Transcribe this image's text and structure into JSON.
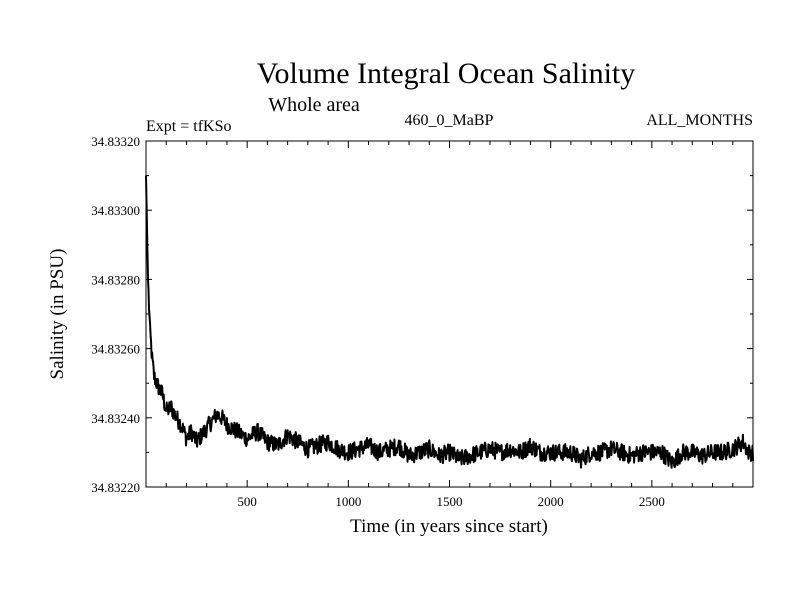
{
  "chart_data": {
    "type": "line",
    "title": "Volume Integral Ocean Salinity",
    "subtitle": "Whole area",
    "header_left": "Expt = tfKSo",
    "header_center": "460_0_MaBP",
    "header_right": "ALL_MONTHS",
    "xlabel": "Time (in years since start)",
    "ylabel": "Salinity (in PSU)",
    "xlim": [
      0,
      3000
    ],
    "ylim": [
      34.8322,
      34.8332
    ],
    "x_ticks": [
      500,
      1000,
      1500,
      2000,
      2500
    ],
    "x_tick_labels": [
      "500",
      "1000",
      "1500",
      "2000",
      "2500"
    ],
    "y_ticks": [
      34.8322,
      34.8324,
      34.8326,
      34.8328,
      34.833,
      34.8332
    ],
    "y_tick_labels": [
      "34.83220",
      "34.83240",
      "34.83260",
      "34.83280",
      "34.83300",
      "34.83320"
    ],
    "grid": false,
    "series": [
      {
        "name": "Salinity",
        "color": "#000000",
        "x": [
          0,
          5,
          10,
          20,
          30,
          40,
          60,
          80,
          100,
          125,
          150,
          175,
          200,
          225,
          250,
          275,
          300,
          325,
          350,
          375,
          400,
          450,
          500,
          550,
          600,
          650,
          700,
          750,
          800,
          850,
          900,
          950,
          1000,
          1050,
          1100,
          1150,
          1200,
          1250,
          1300,
          1350,
          1400,
          1450,
          1500,
          1550,
          1600,
          1650,
          1700,
          1750,
          1800,
          1850,
          1900,
          1950,
          2000,
          2050,
          2100,
          2150,
          2200,
          2250,
          2300,
          2350,
          2400,
          2450,
          2500,
          2550,
          2600,
          2650,
          2700,
          2750,
          2800,
          2850,
          2900,
          2950,
          2980,
          3000
        ],
        "values": [
          34.8331,
          34.83295,
          34.8328,
          34.83265,
          34.83257,
          34.83252,
          34.83249,
          34.83247,
          34.83242,
          34.83243,
          34.8324,
          34.83238,
          34.83234,
          34.83236,
          34.83233,
          34.83235,
          34.83237,
          34.83239,
          34.83241,
          34.8324,
          34.83238,
          34.83236,
          34.83234,
          34.83236,
          34.83233,
          34.83232,
          34.83235,
          34.83233,
          34.83231,
          34.83232,
          34.83233,
          34.83231,
          34.8323,
          34.83231,
          34.83232,
          34.8323,
          34.83231,
          34.83232,
          34.83229,
          34.8323,
          34.83231,
          34.83229,
          34.8323,
          34.83228,
          34.83229,
          34.8323,
          34.83231,
          34.8323,
          34.83231,
          34.8323,
          34.83232,
          34.8323,
          34.8323,
          34.8323,
          34.8323,
          34.83228,
          34.8323,
          34.8323,
          34.83231,
          34.8323,
          34.83229,
          34.8323,
          34.8323,
          34.8323,
          34.83227,
          34.8323,
          34.8323,
          34.83229,
          34.8323,
          34.8323,
          34.83231,
          34.83233,
          34.8323,
          34.8323
        ]
      }
    ]
  }
}
